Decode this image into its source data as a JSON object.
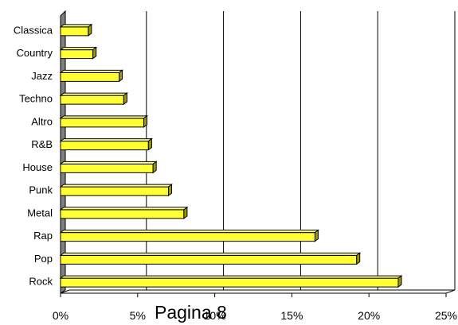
{
  "chart_data": {
    "type": "bar",
    "orientation": "horizontal",
    "categories": [
      "Rock",
      "Pop",
      "Rap",
      "Metal",
      "Punk",
      "House",
      "R&B",
      "Altro",
      "Techno",
      "Jazz",
      "Country",
      "Classica"
    ],
    "values": [
      21.9,
      19.2,
      16.5,
      8.0,
      7.0,
      6.0,
      5.7,
      5.4,
      4.1,
      3.8,
      2.1,
      1.8
    ],
    "xlim": [
      0,
      25
    ],
    "xticks": [
      0,
      5,
      10,
      15,
      20,
      25
    ],
    "tick_suffix": "%",
    "grid": true,
    "title": "",
    "xlabel": "",
    "ylabel": "",
    "bar_color": "#ffff33",
    "bar_top_color": "#ffff99",
    "bar_side_color": "#999900"
  },
  "footer": {
    "page_label": "Pagina 8"
  }
}
